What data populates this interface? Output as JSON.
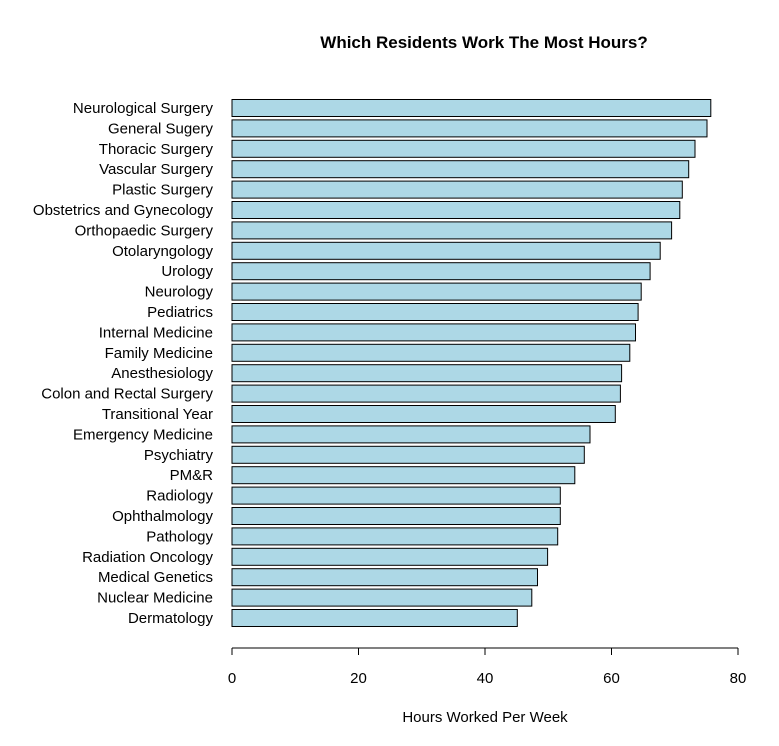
{
  "chart_data": {
    "type": "bar",
    "orientation": "horizontal",
    "title": "Which Residents Work The Most Hours?",
    "xlabel": "Hours Worked Per Week",
    "ylabel": "",
    "xlim": [
      0,
      80
    ],
    "xticks": [
      "0",
      "20",
      "40",
      "60",
      "80"
    ],
    "grid": false,
    "bar_color": "#add8e6",
    "bar_border_color": "#000000",
    "categories": [
      "Neurological Surgery",
      "General Sugery",
      "Thoracic Surgery",
      "Vascular Surgery",
      "Plastic Surgery",
      "Obstetrics and Gynecology",
      "Orthopaedic Surgery",
      "Otolaryngology",
      "Urology",
      "Neurology",
      "Pediatrics",
      "Internal Medicine",
      "Family Medicine",
      "Anesthesiology",
      "Colon and Rectal Surgery",
      "Transitional Year",
      "Emergency Medicine",
      "Psychiatry",
      "PM&R",
      "Radiology",
      "Ophthalmology",
      "Pathology",
      "Radiation Oncology",
      "Medical Genetics",
      "Nuclear Medicine",
      "Dermatology"
    ],
    "values": [
      75.7,
      75.1,
      73.2,
      72.2,
      71.2,
      70.8,
      69.5,
      67.7,
      66.1,
      64.7,
      64.2,
      63.8,
      62.9,
      61.6,
      61.4,
      60.6,
      56.6,
      55.7,
      54.2,
      51.9,
      51.9,
      51.5,
      49.9,
      48.3,
      47.4,
      45.1
    ]
  }
}
